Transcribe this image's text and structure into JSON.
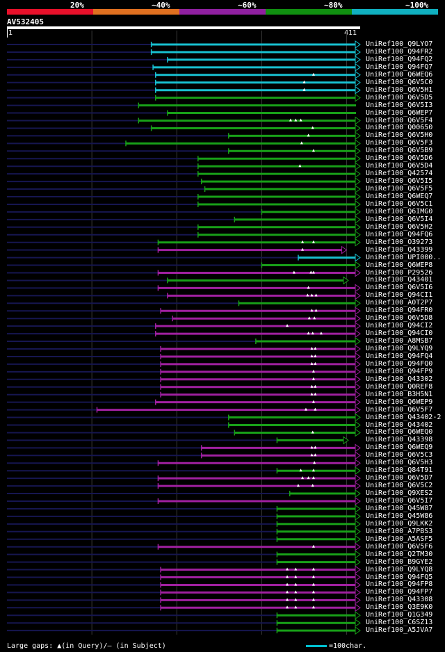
{
  "legend": {
    "bins": [
      {
        "label": "20%",
        "color": "#e8102a"
      },
      {
        "label": "~40%",
        "color": "#e07020"
      },
      {
        "label": "~60%",
        "color": "#9020a0"
      },
      {
        "label": "~80%",
        "color": "#109010"
      },
      {
        "label": "~100%",
        "color": "#10b0c0"
      }
    ]
  },
  "query": {
    "name": "AV532405",
    "start": "1",
    "end": "411"
  },
  "color_map": {
    "cyan": "#18c0d0",
    "green": "#18a018",
    "purple": "#a020a0"
  },
  "hits": [
    {
      "label": "UniRef100_Q9LYO7",
      "color": "cyan",
      "start": 170,
      "end": 411,
      "arrow": true,
      "marks": []
    },
    {
      "label": "UniRef100_Q94FR2",
      "color": "cyan",
      "start": 170,
      "end": 411,
      "arrow": true,
      "marks": []
    },
    {
      "label": "UniRef100_Q94FQ2",
      "color": "cyan",
      "start": 189,
      "end": 411,
      "arrow": true,
      "marks": []
    },
    {
      "label": "UniRef100_Q94FQ7",
      "color": "cyan",
      "start": 172,
      "end": 411,
      "arrow": true,
      "marks": []
    },
    {
      "label": "UniRef100_Q6WEQ6",
      "color": "cyan",
      "start": 175,
      "end": 411,
      "arrow": true,
      "marks": [
        361
      ]
    },
    {
      "label": "UniRef100_Q6V5C0",
      "color": "cyan",
      "start": 175,
      "end": 411,
      "arrow": true,
      "marks": [
        350
      ]
    },
    {
      "label": "UniRef100_Q6V5H1",
      "color": "cyan",
      "start": 175,
      "end": 411,
      "arrow": true,
      "marks": [
        350
      ]
    },
    {
      "label": "UniRef100_Q6V5D5",
      "color": "green",
      "start": 175,
      "end": 411,
      "arrow": true,
      "marks": []
    },
    {
      "label": "UniRef100_Q6V5I3",
      "color": "green",
      "start": 155,
      "end": 411,
      "arrow": false,
      "marks": []
    },
    {
      "label": "UniRef100_Q6WEP7",
      "color": "green",
      "start": 189,
      "end": 411,
      "arrow": false,
      "marks": []
    },
    {
      "label": "UniRef100_Q6V5F4",
      "color": "green",
      "start": 155,
      "end": 411,
      "arrow": true,
      "marks": [
        334,
        340,
        346
      ]
    },
    {
      "label": "UniRef100_Q00650",
      "color": "green",
      "start": 170,
      "end": 411,
      "arrow": true,
      "marks": [
        360
      ]
    },
    {
      "label": "UniRef100_Q6V5H0",
      "color": "green",
      "start": 261,
      "end": 411,
      "arrow": true,
      "marks": [
        355
      ]
    },
    {
      "label": "UniRef100_Q6V5F3",
      "color": "green",
      "start": 140,
      "end": 411,
      "arrow": true,
      "marks": [
        347
      ]
    },
    {
      "label": "UniRef100_Q6V5B9",
      "color": "green",
      "start": 261,
      "end": 411,
      "arrow": true,
      "marks": [
        361
      ]
    },
    {
      "label": "UniRef100_Q6V5D6",
      "color": "green",
      "start": 225,
      "end": 411,
      "arrow": true,
      "marks": []
    },
    {
      "label": "UniRef100_Q6V5D4",
      "color": "green",
      "start": 225,
      "end": 411,
      "arrow": true,
      "marks": [
        345
      ]
    },
    {
      "label": "UniRef100_Q42574",
      "color": "green",
      "start": 225,
      "end": 411,
      "arrow": true,
      "marks": []
    },
    {
      "label": "UniRef100_Q6V5I5",
      "color": "green",
      "start": 229,
      "end": 411,
      "arrow": true,
      "marks": []
    },
    {
      "label": "UniRef100_Q6V5F5",
      "color": "green",
      "start": 233,
      "end": 411,
      "arrow": true,
      "marks": []
    },
    {
      "label": "UniRef100_Q6WEQ7",
      "color": "green",
      "start": 225,
      "end": 411,
      "arrow": true,
      "marks": []
    },
    {
      "label": "UniRef100_Q6V5C1",
      "color": "green",
      "start": 225,
      "end": 411,
      "arrow": true,
      "marks": []
    },
    {
      "label": "UniRef100_Q6IMG0",
      "color": "green",
      "start": 300,
      "end": 411,
      "arrow": true,
      "marks": []
    },
    {
      "label": "UniRef100_Q6V5I4",
      "color": "green",
      "start": 268,
      "end": 411,
      "arrow": true,
      "marks": []
    },
    {
      "label": "UniRef100_Q6V5H2",
      "color": "green",
      "start": 225,
      "end": 411,
      "arrow": true,
      "marks": []
    },
    {
      "label": "UniRef100_Q94FQ6",
      "color": "green",
      "start": 225,
      "end": 411,
      "arrow": true,
      "marks": []
    },
    {
      "label": "UniRef100_O39273",
      "color": "green",
      "start": 178,
      "end": 411,
      "arrow": true,
      "marks": [
        348,
        361
      ]
    },
    {
      "label": "UniRef100_Q43399",
      "color": "purple",
      "start": 178,
      "end": 395,
      "arrow": true,
      "marks": [
        348
      ]
    },
    {
      "label": "UniRef100_UPI000..",
      "color": "cyan",
      "start": 343,
      "end": 411,
      "arrow": true,
      "marks": []
    },
    {
      "label": "UniRef100_Q6WEP8",
      "color": "green",
      "start": 300,
      "end": 411,
      "arrow": true,
      "marks": []
    },
    {
      "label": "UniRef100_P29526",
      "color": "purple",
      "start": 178,
      "end": 411,
      "arrow": true,
      "marks": [
        338,
        358,
        361
      ]
    },
    {
      "label": "UniRef100_Q43401",
      "color": "green",
      "start": 189,
      "end": 397,
      "arrow": true,
      "marks": []
    },
    {
      "label": "UniRef100_Q6V5I6",
      "color": "purple",
      "start": 178,
      "end": 411,
      "arrow": true,
      "marks": [
        355
      ]
    },
    {
      "label": "UniRef100_Q94CI1",
      "color": "purple",
      "start": 189,
      "end": 411,
      "arrow": true,
      "marks": [
        354,
        359,
        364
      ]
    },
    {
      "label": "UniRef100_A0T2P7",
      "color": "green",
      "start": 273,
      "end": 411,
      "arrow": true,
      "marks": []
    },
    {
      "label": "UniRef100_Q94FR0",
      "color": "purple",
      "start": 181,
      "end": 411,
      "arrow": true,
      "marks": [
        359,
        364
      ]
    },
    {
      "label": "UniRef100_Q6V5D8",
      "color": "purple",
      "start": 195,
      "end": 411,
      "arrow": true,
      "marks": [
        356,
        362
      ]
    },
    {
      "label": "UniRef100_Q94CI2",
      "color": "purple",
      "start": 175,
      "end": 411,
      "arrow": true,
      "marks": [
        330
      ]
    },
    {
      "label": "UniRef100_Q94CI0",
      "color": "purple",
      "start": 175,
      "end": 411,
      "arrow": true,
      "marks": [
        355,
        360,
        370
      ]
    },
    {
      "label": "UniRef100_A8MSB7",
      "color": "green",
      "start": 293,
      "end": 411,
      "arrow": true,
      "marks": []
    },
    {
      "label": "UniRef100_Q9LYQ9",
      "color": "purple",
      "start": 181,
      "end": 411,
      "arrow": true,
      "marks": [
        359,
        363
      ]
    },
    {
      "label": "UniRef100_Q94FQ4",
      "color": "purple",
      "start": 181,
      "end": 411,
      "arrow": true,
      "marks": [
        359,
        363
      ]
    },
    {
      "label": "UniRef100_Q94FQ0",
      "color": "purple",
      "start": 181,
      "end": 411,
      "arrow": true,
      "marks": [
        359,
        363
      ]
    },
    {
      "label": "UniRef100_Q94FP9",
      "color": "purple",
      "start": 181,
      "end": 411,
      "arrow": true,
      "marks": [
        361
      ]
    },
    {
      "label": "UniRef100_Q43302",
      "color": "purple",
      "start": 181,
      "end": 411,
      "arrow": true,
      "marks": [
        361
      ]
    },
    {
      "label": "UniRef100_Q0REF8",
      "color": "purple",
      "start": 181,
      "end": 411,
      "arrow": true,
      "marks": [
        359,
        363
      ]
    },
    {
      "label": "UniRef100_B3H5N1",
      "color": "purple",
      "start": 181,
      "end": 411,
      "arrow": true,
      "marks": [
        359,
        363
      ]
    },
    {
      "label": "UniRef100_Q6WEP9",
      "color": "purple",
      "start": 175,
      "end": 411,
      "arrow": true,
      "marks": [
        361
      ]
    },
    {
      "label": "UniRef100_Q6V5F7",
      "color": "purple",
      "start": 106,
      "end": 411,
      "arrow": true,
      "marks": [
        352,
        363
      ]
    },
    {
      "label": "UniRef100_Q43402-2",
      "color": "green",
      "start": 261,
      "end": 411,
      "arrow": true,
      "marks": []
    },
    {
      "label": "UniRef100_Q43402",
      "color": "green",
      "start": 261,
      "end": 411,
      "arrow": true,
      "marks": []
    },
    {
      "label": "UniRef100_Q6WEQ0",
      "color": "green",
      "start": 268,
      "end": 411,
      "arrow": true,
      "marks": [
        360
      ]
    },
    {
      "label": "UniRef100_Q43398",
      "color": "green",
      "start": 318,
      "end": 397,
      "arrow": true,
      "marks": []
    },
    {
      "label": "UniRef100_Q6WEQ9",
      "color": "purple",
      "start": 229,
      "end": 411,
      "arrow": true,
      "marks": [
        359,
        363
      ]
    },
    {
      "label": "UniRef100_Q6V5C3",
      "color": "purple",
      "start": 229,
      "end": 411,
      "arrow": true,
      "marks": [
        359,
        363
      ]
    },
    {
      "label": "UniRef100_Q6V5H3",
      "color": "purple",
      "start": 178,
      "end": 411,
      "arrow": true,
      "marks": [
        362
      ]
    },
    {
      "label": "UniRef100_Q84T91",
      "color": "green",
      "start": 318,
      "end": 411,
      "arrow": true,
      "marks": [
        346,
        361
      ]
    },
    {
      "label": "UniRef100_Q6V5D7",
      "color": "purple",
      "start": 178,
      "end": 411,
      "arrow": true,
      "marks": [
        348,
        355,
        361
      ]
    },
    {
      "label": "UniRef100_Q6V5C2",
      "color": "purple",
      "start": 178,
      "end": 411,
      "arrow": true,
      "marks": [
        343,
        360
      ]
    },
    {
      "label": "UniRef100_Q9XES2",
      "color": "green",
      "start": 333,
      "end": 411,
      "arrow": true,
      "marks": []
    },
    {
      "label": "UniRef100_Q6V5I7",
      "color": "purple",
      "start": 178,
      "end": 411,
      "arrow": true,
      "marks": []
    },
    {
      "label": "UniRef100_Q45W87",
      "color": "green",
      "start": 318,
      "end": 411,
      "arrow": true,
      "marks": []
    },
    {
      "label": "UniRef100_Q45W86",
      "color": "green",
      "start": 318,
      "end": 411,
      "arrow": true,
      "marks": []
    },
    {
      "label": "UniRef100_Q9LKK2",
      "color": "green",
      "start": 318,
      "end": 411,
      "arrow": true,
      "marks": []
    },
    {
      "label": "UniRef100_A7PBS3",
      "color": "green",
      "start": 318,
      "end": 411,
      "arrow": true,
      "marks": []
    },
    {
      "label": "UniRef100_A5ASF5",
      "color": "green",
      "start": 318,
      "end": 411,
      "arrow": true,
      "marks": []
    },
    {
      "label": "UniRef100_Q6V5F6",
      "color": "purple",
      "start": 178,
      "end": 411,
      "arrow": true,
      "marks": [
        361
      ]
    },
    {
      "label": "UniRef100_Q2TM30",
      "color": "green",
      "start": 318,
      "end": 411,
      "arrow": true,
      "marks": []
    },
    {
      "label": "UniRef100_B9GYE2",
      "color": "green",
      "start": 318,
      "end": 411,
      "arrow": true,
      "marks": []
    },
    {
      "label": "UniRef100_Q9LYQ8",
      "color": "purple",
      "start": 181,
      "end": 411,
      "arrow": true,
      "marks": [
        330,
        340,
        361
      ]
    },
    {
      "label": "UniRef100_Q94FQ5",
      "color": "purple",
      "start": 181,
      "end": 411,
      "arrow": true,
      "marks": [
        330,
        340,
        361
      ]
    },
    {
      "label": "UniRef100_Q94FP8",
      "color": "purple",
      "start": 181,
      "end": 411,
      "arrow": true,
      "marks": [
        330,
        340,
        361
      ]
    },
    {
      "label": "UniRef100_Q94FP7",
      "color": "purple",
      "start": 181,
      "end": 411,
      "arrow": true,
      "marks": [
        330,
        340,
        361
      ]
    },
    {
      "label": "UniRef100_Q43308",
      "color": "purple",
      "start": 181,
      "end": 411,
      "arrow": true,
      "marks": [
        330,
        340,
        361
      ]
    },
    {
      "label": "UniRef100_Q3E9K0",
      "color": "purple",
      "start": 181,
      "end": 411,
      "arrow": true,
      "marks": [
        330,
        340,
        361
      ]
    },
    {
      "label": "UniRef100_Q1G349",
      "color": "green",
      "start": 318,
      "end": 411,
      "arrow": true,
      "marks": []
    },
    {
      "label": "UniRef100_C6SZ13",
      "color": "green",
      "start": 318,
      "end": 411,
      "arrow": true,
      "marks": []
    },
    {
      "label": "UniRef100_A5JVA7",
      "color": "green",
      "start": 318,
      "end": 411,
      "arrow": true,
      "marks": []
    }
  ],
  "footer": {
    "text": "Large gaps: ▲(in Query)/— (in Subject)",
    "scale": "=100char."
  }
}
